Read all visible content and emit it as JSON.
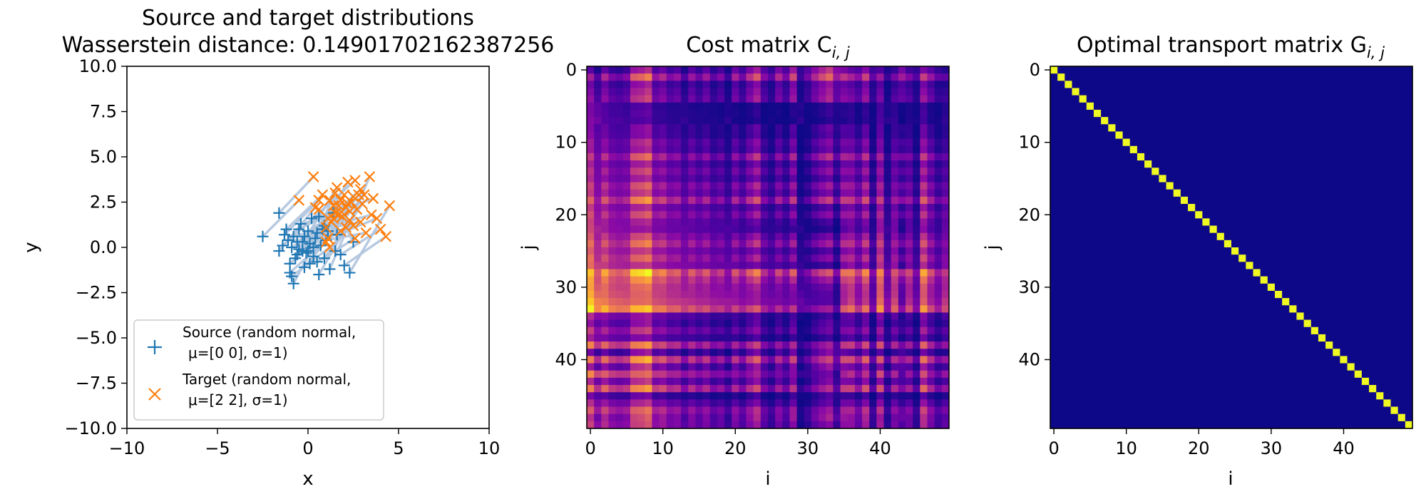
{
  "chart_data": [
    {
      "type": "scatter",
      "title": "Source and target distributions",
      "subtitle_prefix": "Wasserstein distance: ",
      "subtitle_value": "0.14901702162387256",
      "xlabel": "x",
      "ylabel": "y",
      "xlim": [
        -10,
        10
      ],
      "ylim": [
        -10,
        10
      ],
      "xticks": [
        -10,
        -5,
        0,
        5,
        10
      ],
      "yticks": [
        -10.0,
        -7.5,
        -5.0,
        -2.5,
        0.0,
        2.5,
        5.0,
        7.5,
        10.0
      ],
      "xtick_labels": [
        "−10",
        "−5",
        "0",
        "5",
        "10"
      ],
      "ytick_labels": [
        "−10.0",
        "−7.5",
        "−5.0",
        "−2.5",
        "0.0",
        "2.5",
        "5.0",
        "7.5",
        "10.0"
      ],
      "grid": false,
      "legend_position": "lower-left",
      "series": [
        {
          "name": "Source (random normal,\n μ=[0 0], σ=1)",
          "legend_line1": "Source (random normal,",
          "legend_line2": "μ=[0 0], σ=1)",
          "marker": "+",
          "color": "#1f77b4",
          "points": [
            [
              -2.5,
              0.6
            ],
            [
              -1.6,
              1.9
            ],
            [
              -1.6,
              -0.2
            ],
            [
              -1.3,
              0.7
            ],
            [
              -1.2,
              1.0
            ],
            [
              -1.1,
              0.4
            ],
            [
              -1.0,
              -1.4
            ],
            [
              -0.9,
              -1.6
            ],
            [
              -0.8,
              -2.0
            ],
            [
              -0.9,
              0.0
            ],
            [
              -0.7,
              -0.6
            ],
            [
              -0.6,
              0.3
            ],
            [
              -0.5,
              -0.1
            ],
            [
              -0.4,
              1.3
            ],
            [
              -0.3,
              -0.2
            ],
            [
              -0.2,
              0.6
            ],
            [
              -0.1,
              -0.3
            ],
            [
              0.0,
              0.9
            ],
            [
              0.1,
              0.2
            ],
            [
              0.2,
              1.6
            ],
            [
              0.3,
              -0.5
            ],
            [
              0.4,
              0.5
            ],
            [
              0.5,
              -0.8
            ],
            [
              0.6,
              -1.5
            ],
            [
              0.7,
              0.1
            ],
            [
              0.8,
              1.0
            ],
            [
              0.9,
              -0.6
            ],
            [
              1.0,
              0.4
            ],
            [
              1.2,
              -1.2
            ],
            [
              1.4,
              1.9
            ],
            [
              1.6,
              0.7
            ],
            [
              1.8,
              -0.4
            ],
            [
              2.0,
              -1.0
            ],
            [
              2.3,
              -1.4
            ],
            [
              2.5,
              0.3
            ],
            [
              0.1,
              -0.9
            ],
            [
              -0.6,
              -0.4
            ],
            [
              0.3,
              0.0
            ],
            [
              -0.2,
              -1.1
            ],
            [
              1.1,
              0.9
            ],
            [
              -1.4,
              0.1
            ],
            [
              0.6,
              1.7
            ],
            [
              -0.8,
              0.6
            ],
            [
              1.5,
              -0.2
            ],
            [
              -0.3,
              0.3
            ],
            [
              0.9,
              1.2
            ],
            [
              -1.0,
              -0.9
            ],
            [
              0.0,
              -0.2
            ],
            [
              0.5,
              0.8
            ],
            [
              -0.5,
              1.0
            ]
          ]
        },
        {
          "name": "Target (random normal,\n μ=[2 2], σ=1)",
          "legend_line1": "Target (random normal,",
          "legend_line2": "μ=[2 2], σ=1)",
          "marker": "x",
          "color": "#ff7f0e",
          "points": [
            [
              -0.5,
              2.6
            ],
            [
              0.3,
              3.9
            ],
            [
              0.4,
              2.2
            ],
            [
              0.6,
              2.6
            ],
            [
              0.8,
              2.9
            ],
            [
              1.0,
              0.3
            ],
            [
              1.1,
              0.5
            ],
            [
              1.2,
              0.0
            ],
            [
              1.1,
              1.6
            ],
            [
              1.3,
              1.4
            ],
            [
              1.4,
              2.3
            ],
            [
              1.5,
              1.9
            ],
            [
              1.6,
              3.3
            ],
            [
              1.7,
              1.8
            ],
            [
              1.8,
              2.6
            ],
            [
              1.9,
              1.7
            ],
            [
              2.0,
              2.9
            ],
            [
              2.1,
              2.2
            ],
            [
              2.2,
              3.6
            ],
            [
              2.3,
              1.5
            ],
            [
              2.4,
              2.5
            ],
            [
              2.5,
              1.2
            ],
            [
              2.6,
              0.5
            ],
            [
              2.7,
              2.1
            ],
            [
              2.8,
              2.9
            ],
            [
              2.9,
              1.4
            ],
            [
              3.0,
              2.4
            ],
            [
              3.2,
              0.8
            ],
            [
              3.4,
              3.9
            ],
            [
              3.6,
              2.7
            ],
            [
              3.8,
              1.6
            ],
            [
              4.0,
              1.0
            ],
            [
              4.3,
              0.6
            ],
            [
              4.5,
              2.3
            ],
            [
              2.1,
              1.1
            ],
            [
              1.4,
              1.6
            ],
            [
              2.3,
              2.0
            ],
            [
              1.8,
              0.9
            ],
            [
              3.1,
              2.9
            ],
            [
              0.6,
              2.1
            ],
            [
              2.6,
              3.7
            ],
            [
              1.2,
              2.6
            ],
            [
              3.5,
              1.8
            ],
            [
              1.7,
              2.3
            ],
            [
              2.9,
              3.2
            ],
            [
              1.0,
              1.1
            ],
            [
              2.0,
              1.8
            ],
            [
              2.5,
              2.8
            ],
            [
              1.5,
              3.0
            ],
            [
              2.2,
              2.4
            ]
          ]
        }
      ],
      "mapping_line_color": "#b0c4de"
    },
    {
      "type": "heatmap",
      "title": "Cost matrix C",
      "title_subscript": "i, j",
      "xlabel": "i",
      "ylabel": "j",
      "size": 50,
      "xticks": [
        0,
        10,
        20,
        30,
        40
      ],
      "yticks": [
        0,
        10,
        20,
        30,
        40
      ],
      "colormap": "plasma",
      "values": "C[i][j] = squared euclidean distance between source point i and target point j (50x50)"
    },
    {
      "type": "heatmap",
      "title": "Optimal transport matrix G",
      "title_subscript": "i, j",
      "xlabel": "i",
      "ylabel": "j",
      "size": 50,
      "xticks": [
        0,
        10,
        20,
        30,
        40
      ],
      "yticks": [
        0,
        10,
        20,
        30,
        40
      ],
      "colormap": "plasma",
      "values": "identity matrix: G[i][i] = max (yellow), all other cells = 0 (dark blue)",
      "low_color": "#0d0887",
      "high_color": "#f0f921"
    }
  ]
}
